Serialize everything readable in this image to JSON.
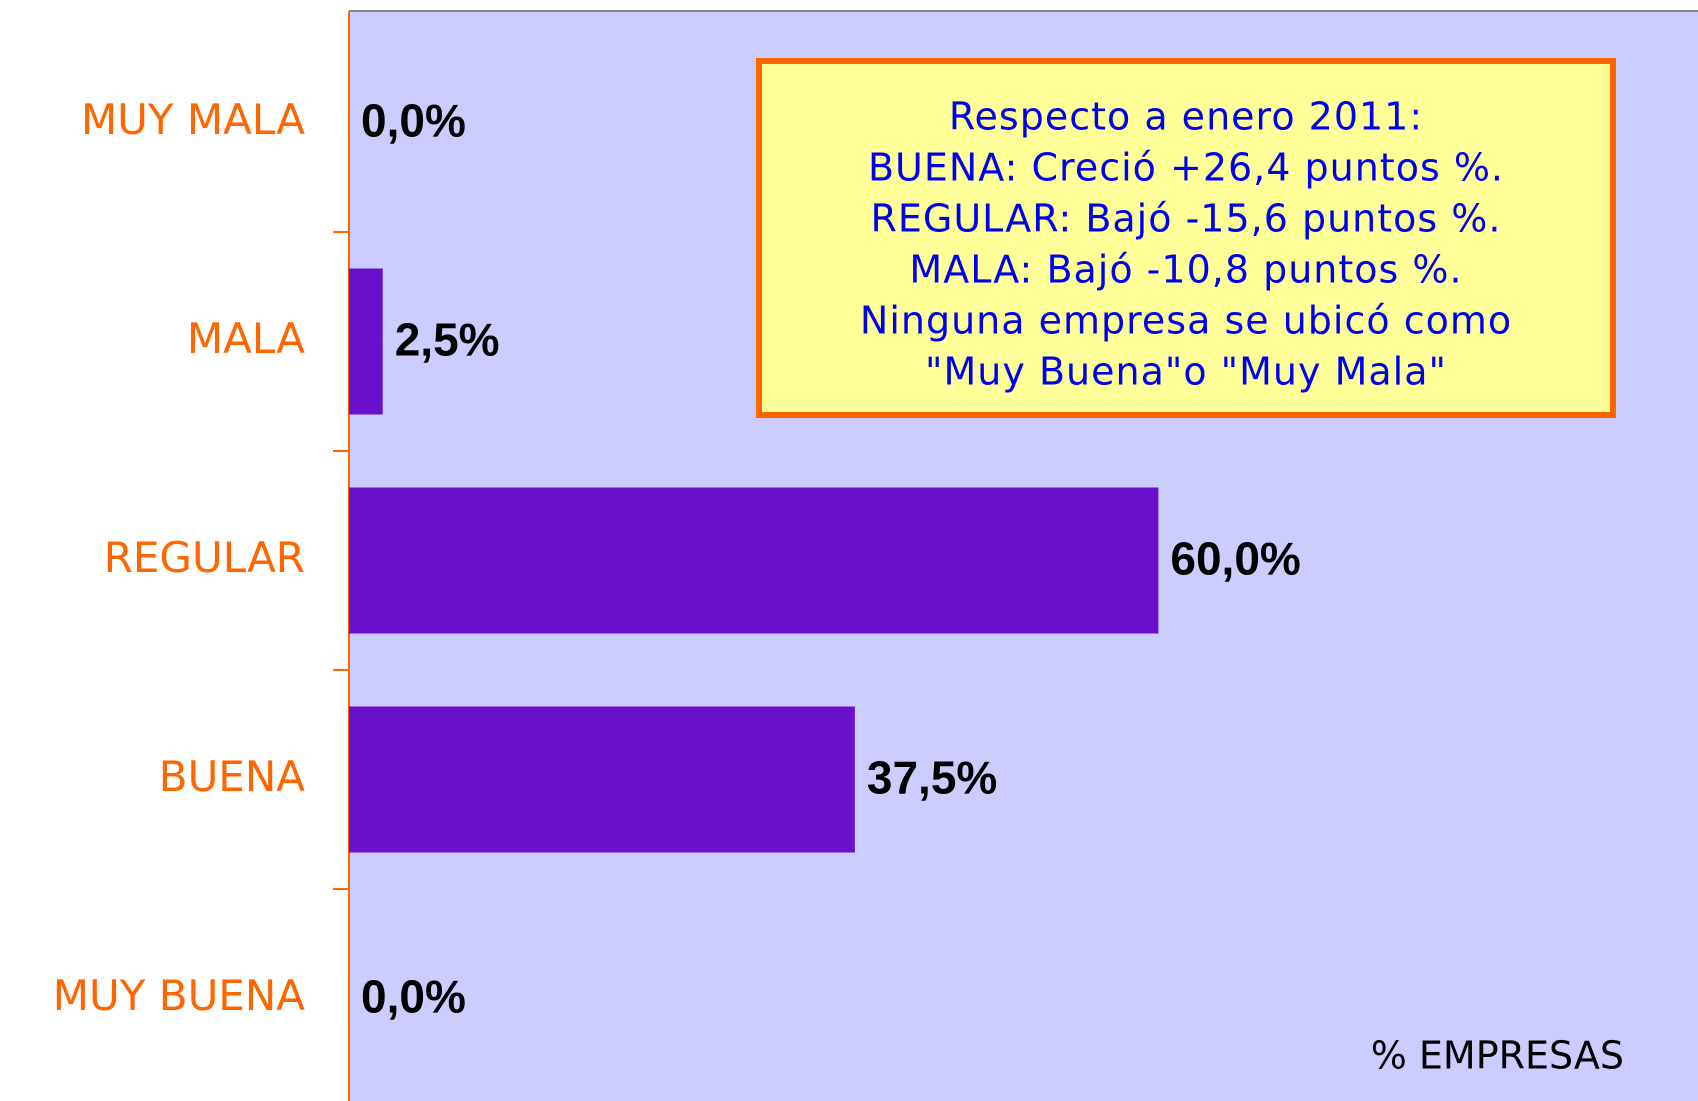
{
  "chart_data": {
    "type": "barh",
    "categories": [
      "MUY MALA",
      "MALA",
      "REGULAR",
      "BUENA",
      "MUY BUENA"
    ],
    "values": [
      0,
      2.5,
      60,
      37.5,
      0
    ],
    "value_labels": [
      "0,0%",
      "2,5%",
      "60,0%",
      "37,5%",
      "0,0%"
    ],
    "color": "#6a0fcc",
    "xlim": [
      0,
      100
    ],
    "xlabel": "% EMPRESAS",
    "annotation": [
      "Respecto a enero 2011:",
      "BUENA: Creció +26,4 puntos %.",
      "REGULAR: Bajó -15,6 puntos %.",
      "MALA: Bajó -10,8 puntos %.",
      "Ninguna empresa se ubicó como",
      "\"Muy Buena\"o \"Muy Mala\""
    ]
  }
}
